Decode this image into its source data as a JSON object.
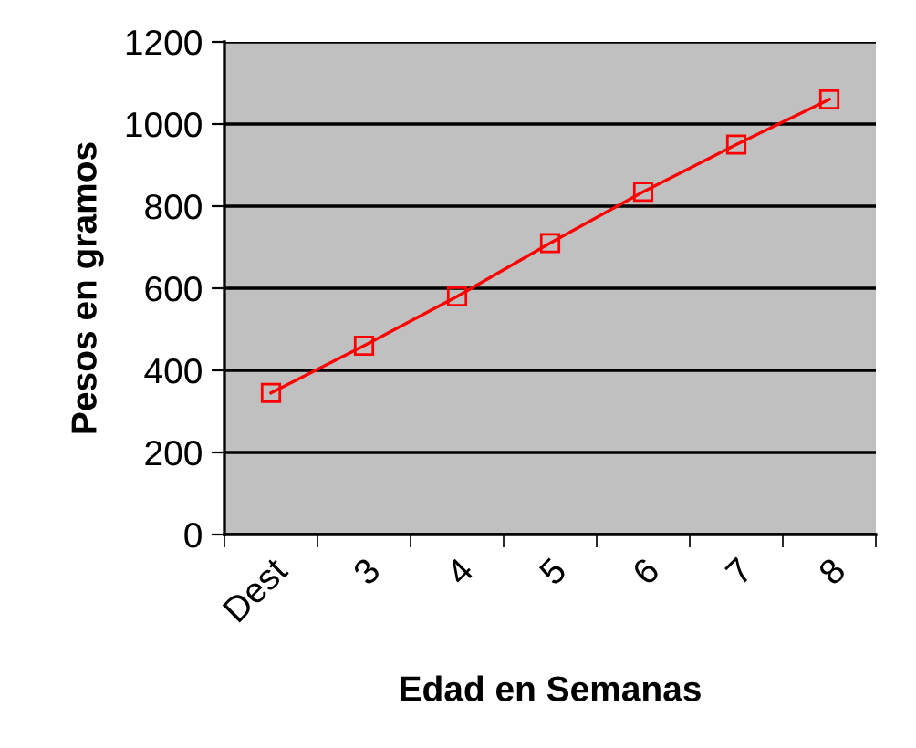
{
  "chart_data": {
    "type": "line",
    "xlabel": "Edad en Semanas",
    "ylabel": "Pesos en gramos",
    "categories": [
      "Dest",
      "3",
      "4",
      "5",
      "6",
      "7",
      "8"
    ],
    "series": [
      {
        "color": "#ff0000",
        "values": [
          345,
          460,
          580,
          710,
          835,
          950,
          1060
        ]
      }
    ],
    "ylim": [
      0,
      1200
    ],
    "yticks": [
      0,
      200,
      400,
      600,
      800,
      1000,
      1200
    ],
    "grid": "y",
    "marker": "square",
    "line_style": "solid",
    "legend": false
  }
}
